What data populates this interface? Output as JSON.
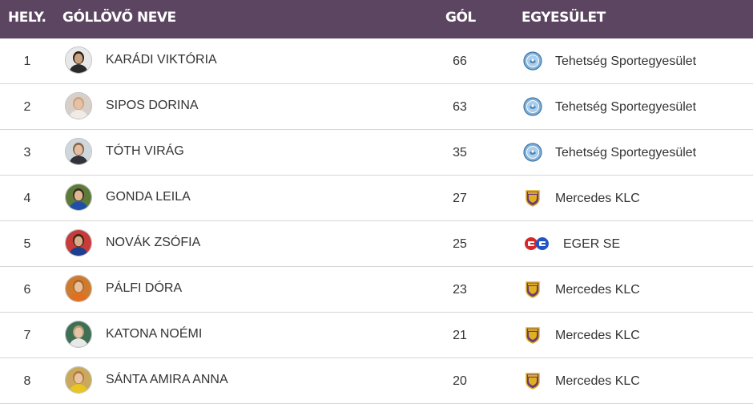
{
  "header": {
    "rank": "HELY.",
    "name": "GÓLLÖVŐ NEVE",
    "goals": "GÓL",
    "club": "EGYESÜLET"
  },
  "rows": [
    {
      "rank": "1",
      "name": "KARÁDI VIKTÓRIA",
      "goals": "66",
      "club": "Tehetség Sportegyesület",
      "club_icon": "tehetseg-crest-icon",
      "avatar_bg": "#e8e8e8",
      "shirt": "#2a2a2a",
      "skin": "#caa27f",
      "hair": "#2a2018"
    },
    {
      "rank": "2",
      "name": "SIPOS DORINA",
      "goals": "63",
      "club": "Tehetség Sportegyesület",
      "club_icon": "tehetseg-crest-icon",
      "avatar_bg": "#d8cfc8",
      "shirt": "#f0ebe6",
      "skin": "#e6c1a8",
      "hair": "#c9a47a"
    },
    {
      "rank": "3",
      "name": "TÓTH VIRÁG",
      "goals": "35",
      "club": "Tehetség Sportegyesület",
      "club_icon": "tehetseg-crest-icon",
      "avatar_bg": "#cfd6dc",
      "shirt": "#30343a",
      "skin": "#e2bda3",
      "hair": "#8a6440"
    },
    {
      "rank": "4",
      "name": "GONDA LEILA",
      "goals": "27",
      "club": "Mercedes KLC",
      "club_icon": "mercedes-klc-crest-icon",
      "avatar_bg": "#5d7a3a",
      "shirt": "#1f4fa8",
      "skin": "#e0b898",
      "hair": "#3a2a1a"
    },
    {
      "rank": "5",
      "name": "NOVÁK ZSÓFIA",
      "goals": "25",
      "club": "EGER SE",
      "club_icon": "eger-se-logo-icon",
      "avatar_bg": "#c73b3b",
      "shirt": "#1d3f8f",
      "skin": "#d9ad8a",
      "hair": "#3b2414"
    },
    {
      "rank": "6",
      "name": "PÁLFI DÓRA",
      "goals": "23",
      "club": "Mercedes KLC",
      "club_icon": "mercedes-klc-crest-icon",
      "avatar_bg": "#d07a2e",
      "shirt": "#e07020",
      "skin": "#e8bf9c",
      "hair": "#a8672e"
    },
    {
      "rank": "7",
      "name": "KATONA NOÉMI",
      "goals": "21",
      "club": "Mercedes KLC",
      "club_icon": "mercedes-klc-crest-icon",
      "avatar_bg": "#3f6f55",
      "shirt": "#e8e8e8",
      "skin": "#e6c2a6",
      "hair": "#b89c70"
    },
    {
      "rank": "8",
      "name": "SÁNTA AMIRA ANNA",
      "goals": "20",
      "club": "Mercedes KLC",
      "club_icon": "mercedes-klc-crest-icon",
      "avatar_bg": "#caa95c",
      "shirt": "#e8c520",
      "skin": "#e9c3a4",
      "hair": "#b07a3a"
    }
  ],
  "colors": {
    "header_bg": "#5b4560",
    "header_text": "#ffffff",
    "row_border": "#d6d6d6",
    "text": "#333333"
  }
}
